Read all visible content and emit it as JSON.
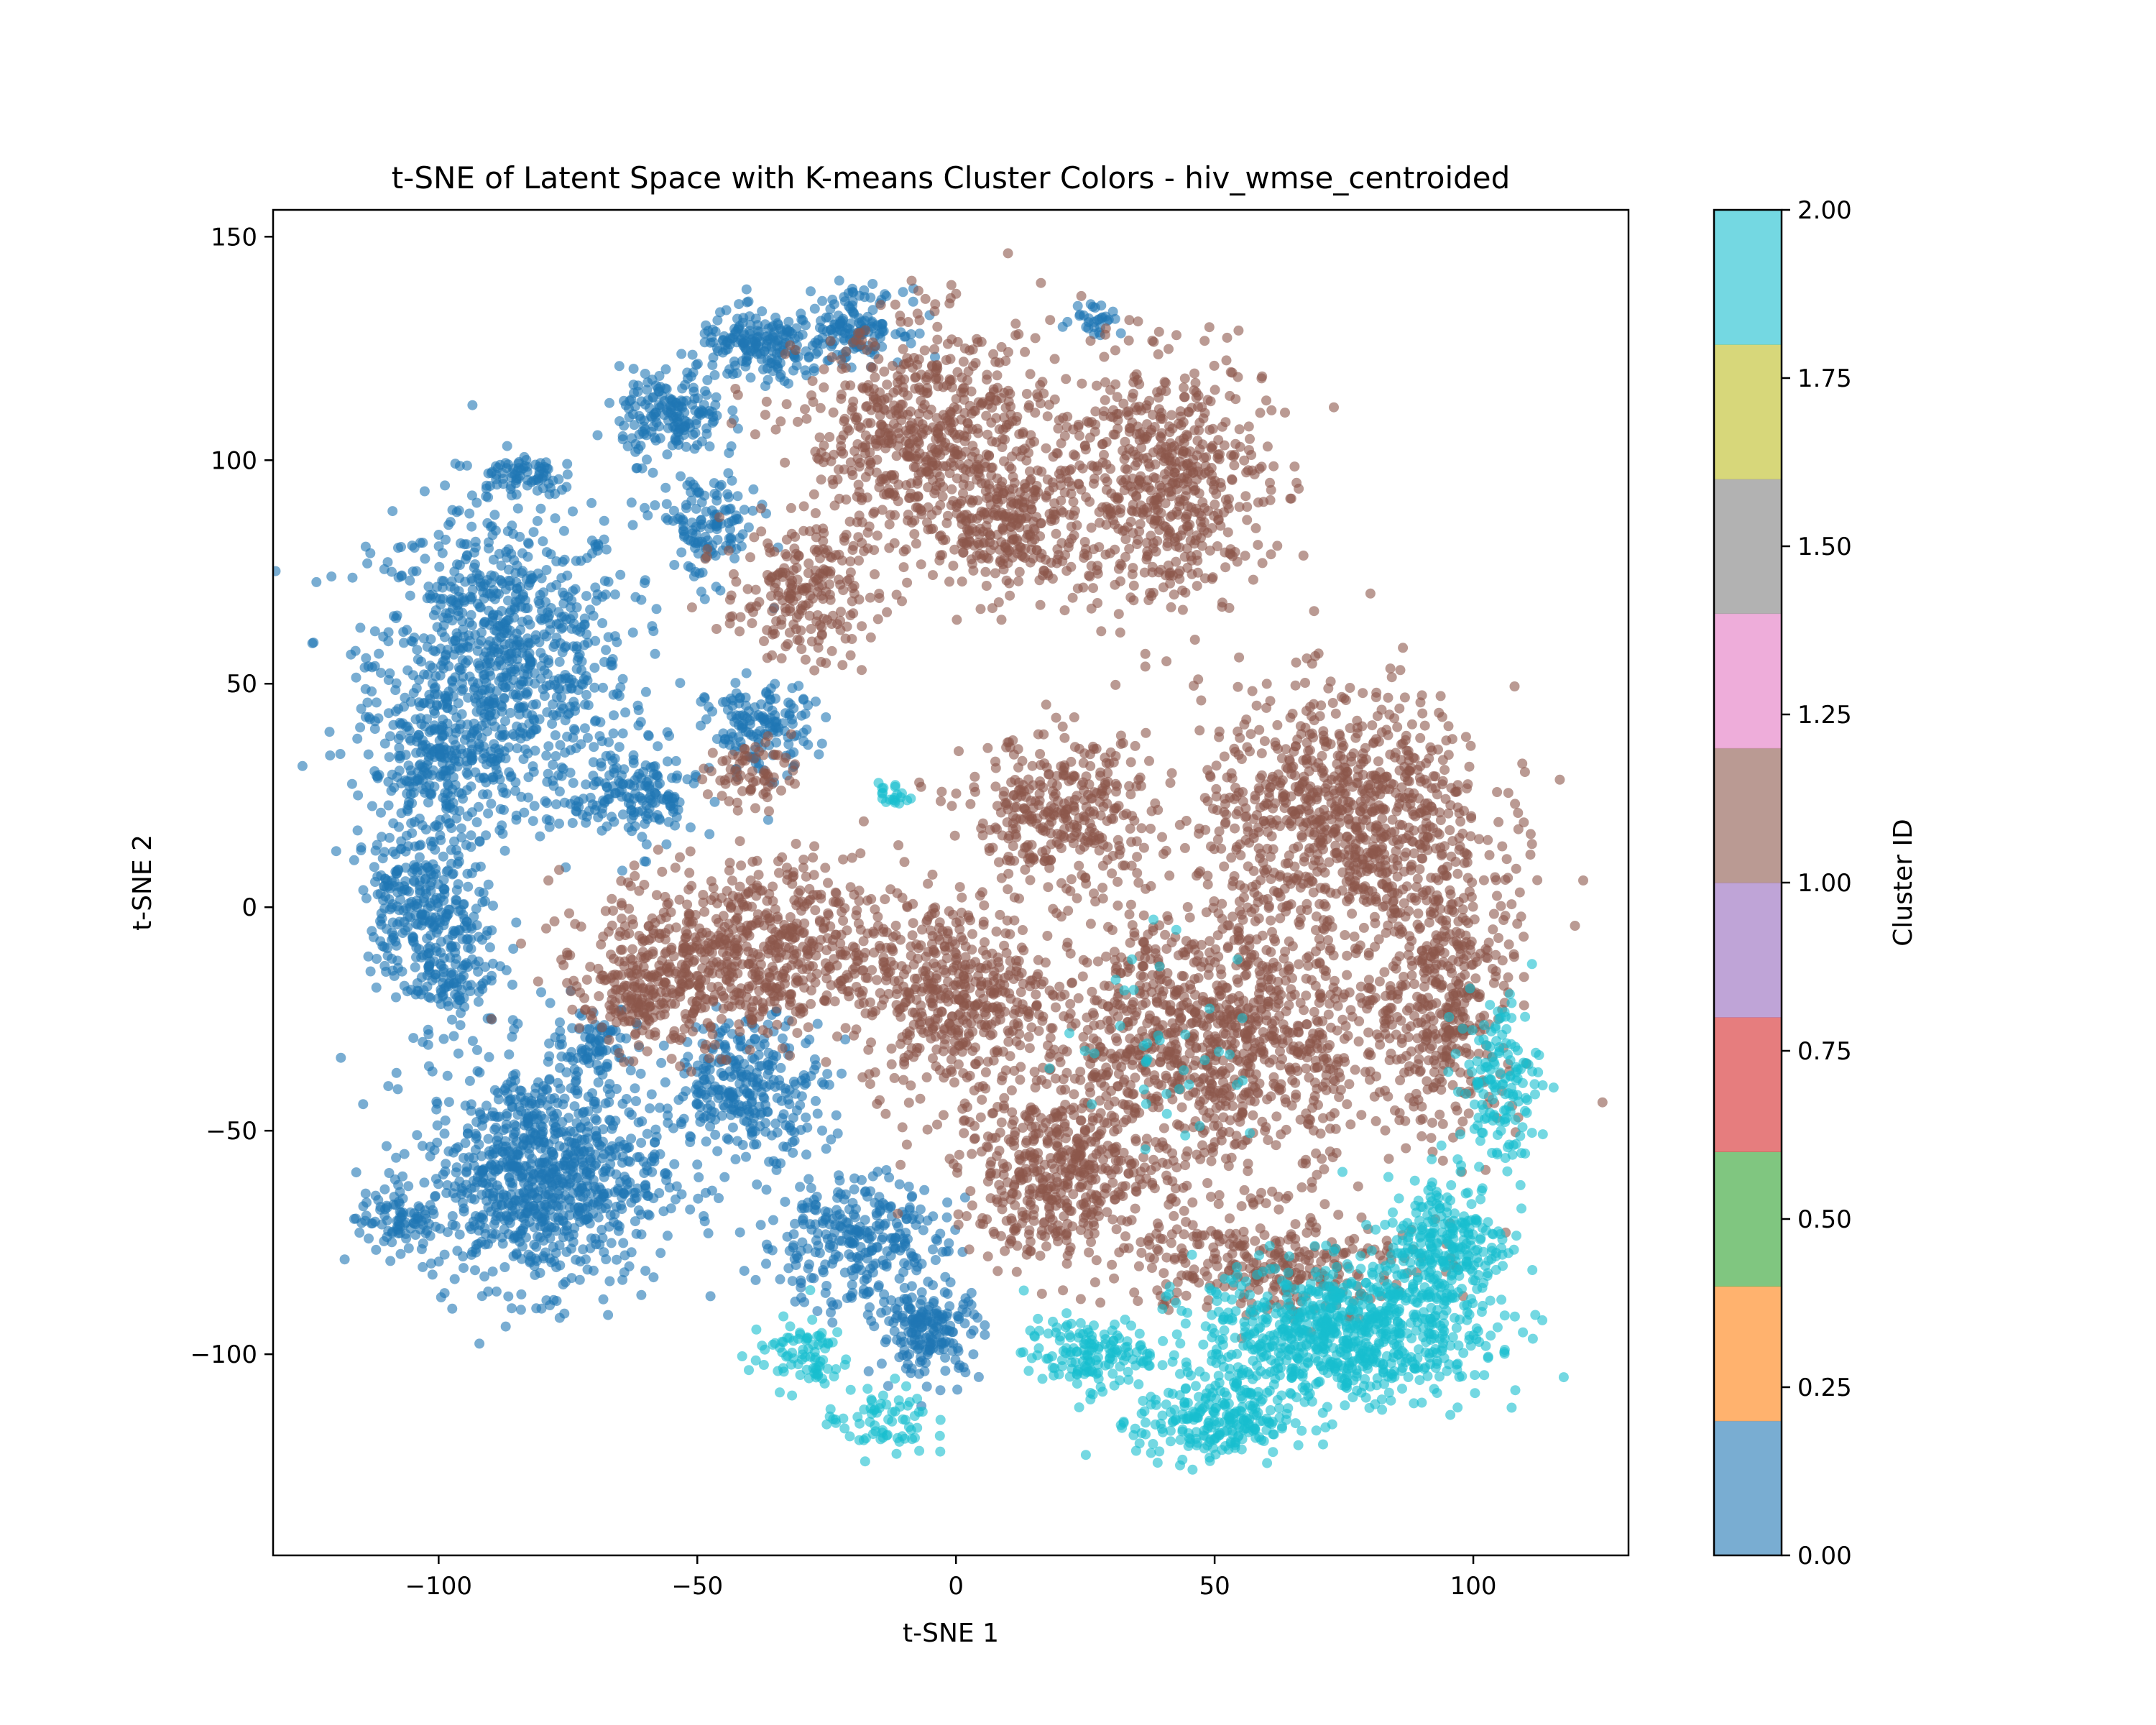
{
  "chart_data": {
    "type": "scatter",
    "title": "t-SNE of Latent Space with K-means Cluster Colors - hiv_wmse_centroided",
    "xlabel": "t-SNE 1",
    "ylabel": "t-SNE 2",
    "xlim": [
      -132,
      130
    ],
    "ylim": [
      -145,
      156
    ],
    "xticks": [
      -100,
      -50,
      0,
      50,
      100
    ],
    "xtick_labels": [
      "−100",
      "−50",
      "0",
      "50",
      "100"
    ],
    "yticks": [
      -100,
      -50,
      0,
      50,
      100,
      150
    ],
    "ytick_labels": [
      "−100",
      "−50",
      "0",
      "50",
      "100",
      "150"
    ],
    "grid": false,
    "point_alpha": 0.6,
    "colorbar": {
      "label": "Cluster ID",
      "range": [
        0,
        2
      ],
      "ticks": [
        0.0,
        0.25,
        0.5,
        0.75,
        1.0,
        1.25,
        1.5,
        1.75,
        2.0
      ],
      "tick_labels": [
        "0.00",
        "0.25",
        "0.50",
        "0.75",
        "1.00",
        "1.25",
        "1.50",
        "1.75",
        "2.00"
      ],
      "segments": [
        "#1f77b4",
        "#ff7f0e",
        "#2ca02c",
        "#d62728",
        "#9467bd",
        "#8c564b",
        "#e377c2",
        "#7f7f7f",
        "#bcbd22",
        "#17becf"
      ]
    },
    "series": [
      {
        "cluster": 0,
        "color": "#1f77b4",
        "regions": [
          {
            "cx": -88,
            "cy": 55,
            "rx": 25,
            "ry": 35,
            "n": 900
          },
          {
            "cx": -100,
            "cy": 30,
            "rx": 14,
            "ry": 20,
            "n": 250
          },
          {
            "cx": -80,
            "cy": -60,
            "rx": 23,
            "ry": 25,
            "n": 950
          },
          {
            "cx": -108,
            "cy": -70,
            "rx": 8,
            "ry": 6,
            "n": 80
          },
          {
            "cx": -100,
            "cy": -10,
            "rx": 12,
            "ry": 18,
            "n": 250
          },
          {
            "cx": -105,
            "cy": 5,
            "rx": 10,
            "ry": 12,
            "n": 120
          },
          {
            "cx": -85,
            "cy": 97,
            "rx": 8,
            "ry": 5,
            "n": 70
          },
          {
            "cx": -55,
            "cy": 110,
            "rx": 10,
            "ry": 10,
            "n": 180
          },
          {
            "cx": -38,
            "cy": 125,
            "rx": 12,
            "ry": 8,
            "n": 180
          },
          {
            "cx": -20,
            "cy": 130,
            "rx": 10,
            "ry": 8,
            "n": 150
          },
          {
            "cx": -48,
            "cy": 85,
            "rx": 10,
            "ry": 12,
            "n": 130
          },
          {
            "cx": -62,
            "cy": 25,
            "rx": 12,
            "ry": 12,
            "n": 170
          },
          {
            "cx": -38,
            "cy": 40,
            "rx": 10,
            "ry": 10,
            "n": 150
          },
          {
            "cx": -40,
            "cy": -40,
            "rx": 15,
            "ry": 15,
            "n": 300
          },
          {
            "cx": -20,
            "cy": -75,
            "rx": 18,
            "ry": 15,
            "n": 300
          },
          {
            "cx": -5,
            "cy": -95,
            "rx": 10,
            "ry": 10,
            "n": 180
          },
          {
            "cx": 27,
            "cy": 132,
            "rx": 5,
            "ry": 4,
            "n": 30
          },
          {
            "cx": -70,
            "cy": -30,
            "rx": 8,
            "ry": 8,
            "n": 80
          }
        ]
      },
      {
        "cluster": 1,
        "color": "#8c564b",
        "regions": [
          {
            "cx": -5,
            "cy": 105,
            "rx": 25,
            "ry": 25,
            "n": 650
          },
          {
            "cx": 40,
            "cy": 95,
            "rx": 20,
            "ry": 28,
            "n": 600
          },
          {
            "cx": 10,
            "cy": 85,
            "rx": 15,
            "ry": 15,
            "n": 250
          },
          {
            "cx": -30,
            "cy": 70,
            "rx": 15,
            "ry": 15,
            "n": 220
          },
          {
            "cx": -40,
            "cy": 30,
            "rx": 8,
            "ry": 8,
            "n": 70
          },
          {
            "cx": -40,
            "cy": -10,
            "rx": 30,
            "ry": 20,
            "n": 700
          },
          {
            "cx": 0,
            "cy": -20,
            "rx": 18,
            "ry": 22,
            "n": 450
          },
          {
            "cx": 75,
            "cy": 20,
            "rx": 28,
            "ry": 28,
            "n": 900
          },
          {
            "cx": 50,
            "cy": -30,
            "rx": 35,
            "ry": 30,
            "n": 1100
          },
          {
            "cx": 95,
            "cy": -20,
            "rx": 14,
            "ry": 30,
            "n": 400
          },
          {
            "cx": 20,
            "cy": 20,
            "rx": 18,
            "ry": 18,
            "n": 350
          },
          {
            "cx": 20,
            "cy": -60,
            "rx": 20,
            "ry": 18,
            "n": 450
          },
          {
            "cx": 60,
            "cy": -80,
            "rx": 28,
            "ry": 12,
            "n": 300
          },
          {
            "cx": -60,
            "cy": -20,
            "rx": 12,
            "ry": 12,
            "n": 160
          }
        ]
      },
      {
        "cluster": 2,
        "color": "#17becf",
        "regions": [
          {
            "cx": 75,
            "cy": -95,
            "rx": 28,
            "ry": 15,
            "n": 800
          },
          {
            "cx": 50,
            "cy": -115,
            "rx": 15,
            "ry": 10,
            "n": 250
          },
          {
            "cx": 95,
            "cy": -75,
            "rx": 12,
            "ry": 15,
            "n": 250
          },
          {
            "cx": 105,
            "cy": -40,
            "rx": 8,
            "ry": 20,
            "n": 150
          },
          {
            "cx": 25,
            "cy": -100,
            "rx": 12,
            "ry": 8,
            "n": 150
          },
          {
            "cx": -30,
            "cy": -100,
            "rx": 10,
            "ry": 8,
            "n": 80
          },
          {
            "cx": -15,
            "cy": -115,
            "rx": 10,
            "ry": 8,
            "n": 70
          },
          {
            "cx": -12,
            "cy": 25,
            "rx": 3,
            "ry": 3,
            "n": 20
          },
          {
            "cx": 40,
            "cy": -30,
            "rx": 20,
            "ry": 25,
            "n": 40
          }
        ]
      }
    ]
  }
}
